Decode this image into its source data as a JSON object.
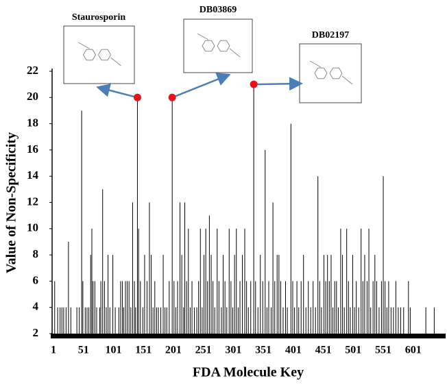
{
  "chart_data": {
    "type": "stem",
    "xlabel": "FDA Molecule Key",
    "ylabel": "Value of Non-Specificity",
    "xlim": [
      1,
      655
    ],
    "ylim": [
      2,
      22
    ],
    "xticks": [
      1,
      51,
      101,
      151,
      201,
      251,
      301,
      351,
      401,
      451,
      501,
      551,
      601
    ],
    "yticks": [
      2,
      4,
      6,
      8,
      10,
      12,
      14,
      16,
      18,
      20,
      22
    ],
    "color": "#000000",
    "x": [
      3,
      8,
      12,
      15,
      18,
      22,
      26,
      30,
      40,
      44,
      48,
      50,
      54,
      57,
      60,
      63,
      65,
      67,
      70,
      73,
      78,
      80,
      83,
      86,
      89,
      92,
      95,
      100,
      104,
      110,
      113,
      116,
      118,
      121,
      124,
      127,
      130,
      133,
      136,
      138,
      141,
      143,
      146,
      150,
      153,
      157,
      161,
      164,
      167,
      170,
      173,
      176,
      180,
      184,
      187,
      190,
      194,
      199,
      202,
      205,
      208,
      212,
      215,
      218,
      220,
      223,
      226,
      229,
      232,
      236,
      240,
      243,
      246,
      249,
      252,
      255,
      258,
      261,
      264,
      267,
      270,
      274,
      277,
      281,
      284,
      287,
      290,
      294,
      297,
      300,
      303,
      306,
      309,
      312,
      316,
      320,
      323,
      326,
      330,
      335,
      338,
      342,
      346,
      350,
      354,
      357,
      360,
      364,
      367,
      370,
      374,
      377,
      380,
      384,
      388,
      391,
      397,
      400,
      403,
      407,
      410,
      414,
      418,
      422,
      426,
      430,
      434,
      438,
      442,
      445,
      448,
      452,
      455,
      458,
      461,
      464,
      467,
      470,
      473,
      476,
      480,
      483,
      486,
      490,
      493,
      496,
      500,
      503,
      506,
      510,
      514,
      517,
      520,
      524,
      527,
      530,
      534,
      537,
      540,
      544,
      548,
      551,
      554,
      557,
      560,
      564,
      568,
      572,
      576,
      580,
      585,
      593,
      596,
      622,
      636
    ],
    "values": [
      6,
      4,
      4,
      4,
      4,
      4,
      9,
      4,
      4,
      4,
      19,
      6,
      4,
      4,
      4,
      8,
      10,
      6,
      6,
      4,
      4,
      6,
      13,
      6,
      4,
      8,
      4,
      8,
      4,
      4,
      6,
      6,
      4,
      6,
      6,
      6,
      4,
      12,
      6,
      4,
      20,
      10,
      6,
      4,
      8,
      6,
      12,
      8,
      4,
      6,
      4,
      4,
      4,
      8,
      4,
      4,
      6,
      20,
      6,
      4,
      6,
      12,
      8,
      4,
      12,
      6,
      10,
      4,
      6,
      4,
      4,
      6,
      10,
      4,
      8,
      10,
      6,
      11,
      8,
      6,
      4,
      10,
      6,
      4,
      8,
      6,
      4,
      10,
      6,
      4,
      8,
      10,
      4,
      6,
      8,
      10,
      6,
      4,
      6,
      21,
      6,
      4,
      8,
      6,
      16,
      4,
      6,
      4,
      12,
      6,
      8,
      8,
      6,
      4,
      6,
      4,
      18,
      6,
      4,
      6,
      4,
      6,
      8,
      4,
      6,
      4,
      6,
      4,
      14,
      6,
      4,
      8,
      6,
      8,
      6,
      8,
      4,
      6,
      6,
      4,
      10,
      8,
      4,
      10,
      6,
      4,
      8,
      4,
      6,
      4,
      10,
      6,
      8,
      6,
      10,
      4,
      6,
      8,
      6,
      4,
      6,
      14,
      6,
      4,
      6,
      4,
      4,
      6,
      4,
      4,
      4,
      6,
      4,
      4,
      4
    ],
    "point_color": "#e8121a",
    "arrow_color": "#4a7ebb",
    "annotations": [
      {
        "label": "Staurosporin",
        "x": 141
      },
      {
        "label": "DB03869",
        "x": 199
      },
      {
        "label": "DB02197",
        "x": 335
      }
    ]
  }
}
